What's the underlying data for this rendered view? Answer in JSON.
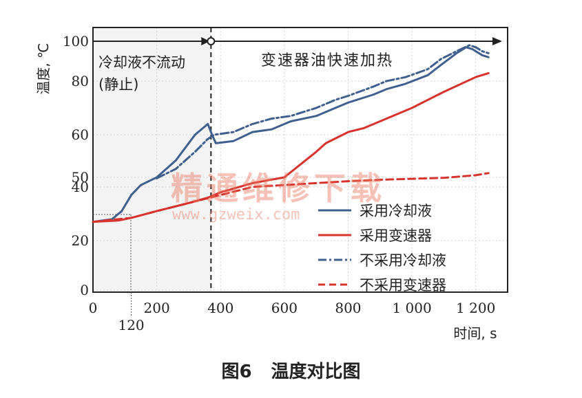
{
  "caption": {
    "figure_no": "图6",
    "title": "温度对比图"
  },
  "watermark": {
    "text_cn": "精通维修下载",
    "url": "www.gzweix.com"
  },
  "chart_data": {
    "type": "line",
    "ylabel": "温度, ℃",
    "xlabel": "时间, s",
    "x_ticks": [
      "0",
      "200",
      "400",
      "600",
      "800",
      "1 000",
      "1 200"
    ],
    "x_tick_values": [
      0,
      200,
      400,
      600,
      800,
      1000,
      1200
    ],
    "x_extra_tick": {
      "value": 120,
      "label": "120"
    },
    "y_ticks": [
      {
        "value": 0,
        "label": "0"
      },
      {
        "value": 20,
        "label": "20"
      },
      {
        "value": 40,
        "label": "40"
      },
      {
        "value": 50,
        "label": "50"
      },
      {
        "value": 60,
        "label": "60"
      },
      {
        "value": 80,
        "label": "80"
      },
      {
        "value": 100,
        "label": "100"
      }
    ],
    "xlim": [
      0,
      1300
    ],
    "ylim_note": "non-linear temperature axis",
    "grid": true,
    "legend_position": "bottom-right",
    "annotations": {
      "phase1_line1": "冷却液不流动",
      "phase1_line2": "(静止)",
      "phase2": "变速器油快速加热",
      "phase_boundary_time": 370
    },
    "series": [
      {
        "name": "采用冷却液",
        "color": "#3f5f8f",
        "style": "solid",
        "x": [
          0,
          60,
          90,
          120,
          150,
          200,
          260,
          320,
          360,
          370,
          385,
          440,
          500,
          560,
          620,
          700,
          760,
          800,
          880,
          920,
          980,
          1050,
          1090,
          1140,
          1170,
          1190,
          1220,
          1240
        ],
        "y": [
          27,
          28,
          31,
          37,
          42,
          50,
          54,
          60,
          64,
          61,
          58,
          58.5,
          61,
          62,
          65,
          67,
          70,
          72,
          75,
          77,
          79,
          83,
          88,
          94,
          97,
          96,
          93,
          92
        ]
      },
      {
        "name": "采用变速器",
        "color": "#d8322c",
        "style": "solid",
        "x": [
          0,
          80,
          120,
          200,
          300,
          360,
          400,
          500,
          600,
          700,
          730,
          800,
          850,
          900,
          1000,
          1100,
          1200,
          1240
        ],
        "y": [
          27,
          27.5,
          28.5,
          31,
          34,
          36,
          38,
          44,
          50,
          56,
          58,
          61,
          62.5,
          65,
          70,
          76,
          82,
          84
        ]
      },
      {
        "name": "不采用冷却液",
        "color": "#3f5f8f",
        "style": "dash-dot",
        "x": [
          200,
          260,
          320,
          360,
          380,
          440,
          500,
          560,
          620,
          700,
          760,
          800,
          880,
          920,
          980,
          1050,
          1090,
          1140,
          1180,
          1200,
          1220,
          1240
        ],
        "y": [
          49,
          52,
          56,
          59,
          60,
          61,
          64,
          66,
          67,
          70,
          73,
          74.5,
          78,
          80,
          82,
          86,
          91,
          95,
          98,
          97,
          95,
          94
        ]
      },
      {
        "name": "不采用变速器",
        "color": "#d8322c",
        "style": "dashed",
        "x": [
          0,
          120,
          200,
          300,
          400,
          500,
          600,
          700,
          800,
          900,
          1000,
          1100,
          1200,
          1240
        ],
        "y": [
          27,
          28.5,
          31,
          34,
          37,
          40,
          42,
          44,
          46,
          47.5,
          48.5,
          49.5,
          50.5,
          51
        ]
      }
    ]
  }
}
